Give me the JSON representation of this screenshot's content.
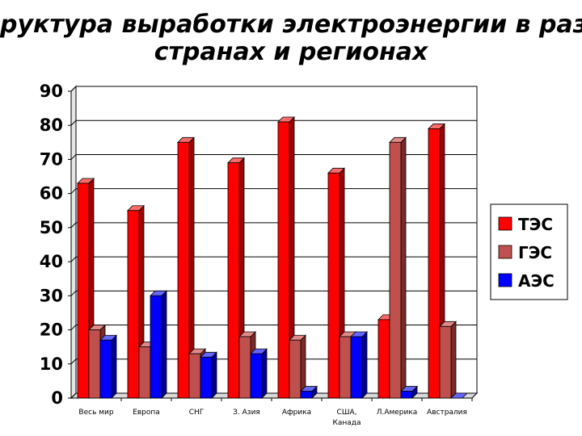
{
  "title_line1": "руктура выработки электроэнергии в разных",
  "title_line2": "странах и регионах",
  "chart_data": {
    "type": "bar",
    "categories": [
      [
        "Весь мир"
      ],
      [
        "Европа"
      ],
      [
        "СНГ"
      ],
      [
        "З. Азия"
      ],
      [
        "Африка"
      ],
      [
        "США,",
        "Канада"
      ],
      [
        "Л.Америка"
      ],
      [
        "Австралия"
      ]
    ],
    "series": [
      {
        "name": "ТЭС",
        "color": "#ff0000",
        "side": "#a00000",
        "top": "#ff6a6a",
        "values": [
          63,
          55,
          75,
          69,
          81,
          66,
          23,
          79
        ]
      },
      {
        "name": "ГЭС",
        "color": "#c0504d",
        "side": "#7a2a28",
        "top": "#e08a88",
        "values": [
          20,
          15,
          13,
          18,
          17,
          18,
          75,
          21
        ]
      },
      {
        "name": "АЭС",
        "color": "#0000ff",
        "side": "#000099",
        "top": "#6666ff",
        "values": [
          17,
          30,
          12,
          13,
          2,
          18,
          2,
          0
        ]
      }
    ],
    "yticks": [
      0,
      10,
      20,
      30,
      40,
      50,
      60,
      70,
      80,
      90
    ],
    "ylim": [
      0,
      90
    ],
    "grid": true,
    "legend_position": "right"
  }
}
